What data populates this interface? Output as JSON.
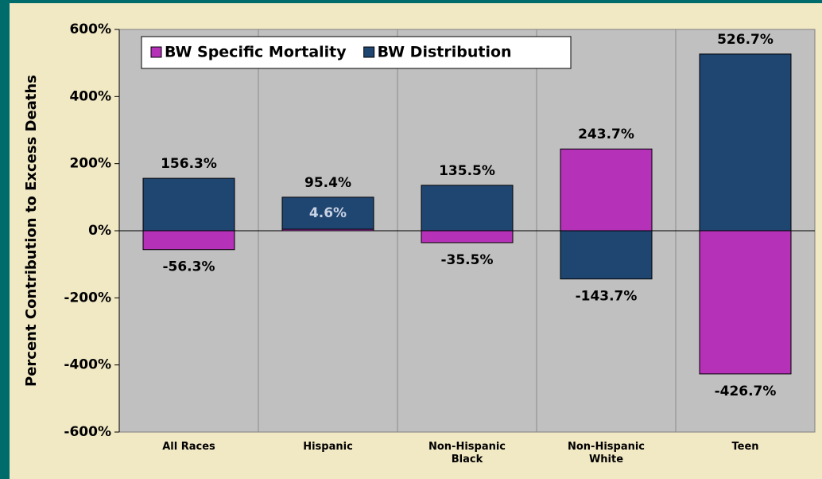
{
  "chart_data": {
    "type": "bar",
    "stacked": true,
    "y_label": "Percent Contribution to Excess Deaths",
    "categories": [
      "All Races",
      "Hispanic",
      "Non-Hispanic Black",
      "Non-Hispanic White",
      "Teen"
    ],
    "series": [
      {
        "name": "BW Specific Mortality",
        "color": "#b531b8",
        "values": [
          -56.3,
          4.6,
          -35.5,
          243.7,
          -426.7
        ],
        "value_labels": [
          "-56.3%",
          "4.6%",
          "-35.5%",
          "243.7%",
          "-426.7%"
        ]
      },
      {
        "name": "BW Distribution",
        "color": "#1f4571",
        "values": [
          156.3,
          95.4,
          135.5,
          -143.7,
          526.7
        ],
        "value_labels": [
          "156.3%",
          "95.4%",
          "135.5%",
          "-143.7%",
          "526.7%"
        ]
      }
    ],
    "ylim": [
      -600,
      600
    ],
    "yticks": [
      {
        "value": -600,
        "label": "-600%"
      },
      {
        "value": -400,
        "label": "-400%"
      },
      {
        "value": -200,
        "label": "-200%"
      },
      {
        "value": 0,
        "label": "0%"
      },
      {
        "value": 200,
        "label": "200%"
      },
      {
        "value": 400,
        "label": "400%"
      },
      {
        "value": 600,
        "label": "600%"
      }
    ],
    "legend": "top-left"
  }
}
